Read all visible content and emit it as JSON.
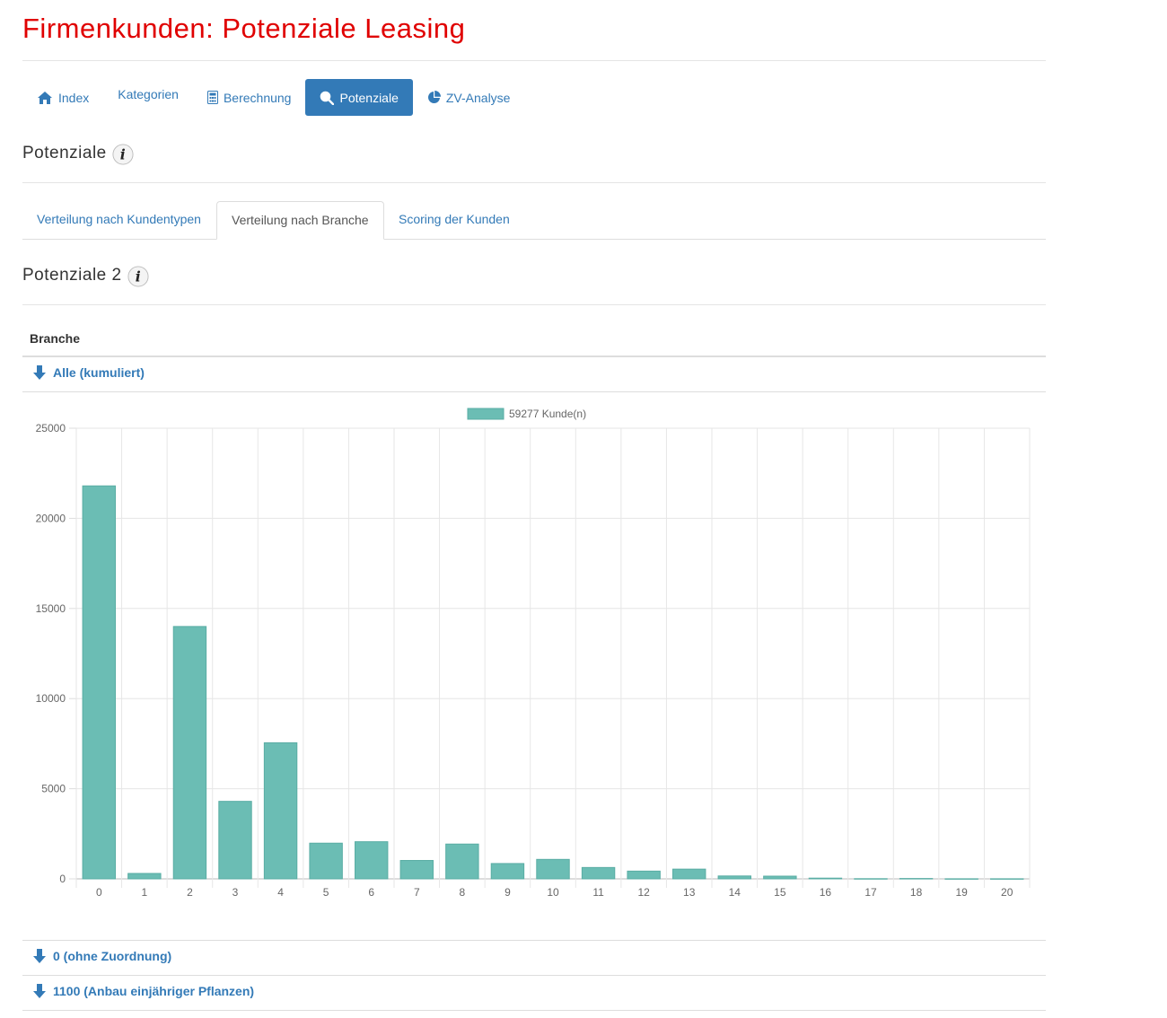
{
  "page": {
    "title": "Firmenkunden: Potenziale Leasing"
  },
  "nav": {
    "items": [
      {
        "label": "Index",
        "icon": "home-icon"
      },
      {
        "label": "Kategorien",
        "icon": ""
      },
      {
        "label": "Berechnung",
        "icon": "calculator-icon"
      },
      {
        "label": "Potenziale",
        "icon": "search-icon",
        "active": true
      },
      {
        "label": "ZV-Analyse",
        "icon": "pie-chart-icon"
      }
    ]
  },
  "section1": {
    "title": "Potenziale",
    "info_icon": "info-icon"
  },
  "tabs": [
    {
      "label": "Verteilung nach Kundentypen"
    },
    {
      "label": "Verteilung nach Branche",
      "active": true
    },
    {
      "label": "Scoring der Kunden"
    }
  ],
  "section2": {
    "title": "Potenziale 2",
    "info_icon": "info-icon"
  },
  "table": {
    "column_header": "Branche",
    "rows": [
      {
        "label": "Alle (kumuliert)",
        "icon": "arrow-down-icon"
      },
      {
        "label": "0 (ohne Zuordnung)",
        "icon": "arrow-down-icon"
      },
      {
        "label": "1100 (Anbau einjähriger Pflanzen)",
        "icon": "arrow-down-icon"
      }
    ]
  },
  "colors": {
    "accent": "#337ab7",
    "title_red": "#e00000",
    "bar": "#6bbdb4",
    "bar_border": "#5aada4"
  },
  "chart_data": {
    "type": "bar",
    "legend": {
      "label": "59277 Kunde(n)",
      "position": "top"
    },
    "categories": [
      "0",
      "1",
      "2",
      "3",
      "4",
      "5",
      "6",
      "7",
      "8",
      "9",
      "10",
      "11",
      "12",
      "13",
      "14",
      "15",
      "16",
      "17",
      "18",
      "19",
      "20"
    ],
    "series": [
      {
        "name": "59277 Kunde(n)",
        "values": [
          21800,
          300,
          14000,
          4300,
          7550,
          1980,
          2060,
          1020,
          1930,
          850,
          1080,
          630,
          430,
          540,
          160,
          150,
          40,
          10,
          20,
          5,
          5
        ]
      }
    ],
    "ylim": [
      0,
      25000
    ],
    "yticks": [
      0,
      5000,
      10000,
      15000,
      20000,
      25000
    ],
    "grid": true
  }
}
